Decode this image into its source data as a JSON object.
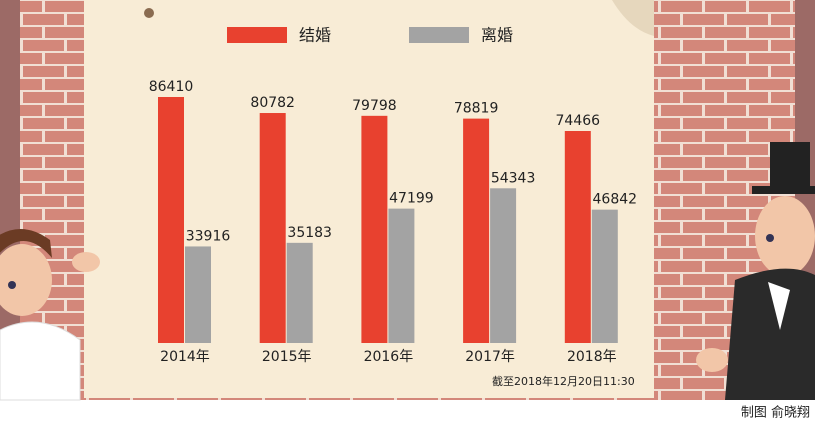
{
  "chart_data": {
    "type": "bar",
    "categories": [
      "2014年",
      "2015年",
      "2016年",
      "2017年",
      "2018年"
    ],
    "series": [
      {
        "name": "结婚",
        "color": "#e8412f",
        "values": [
          86410,
          80782,
          79798,
          78819,
          74466
        ]
      },
      {
        "name": "离婚",
        "color": "#a3a3a3",
        "values": [
          33916,
          35183,
          47199,
          54343,
          46842
        ]
      }
    ],
    "note": "截至2018年12月20日11:30",
    "credit": "制图 俞晓翔"
  }
}
